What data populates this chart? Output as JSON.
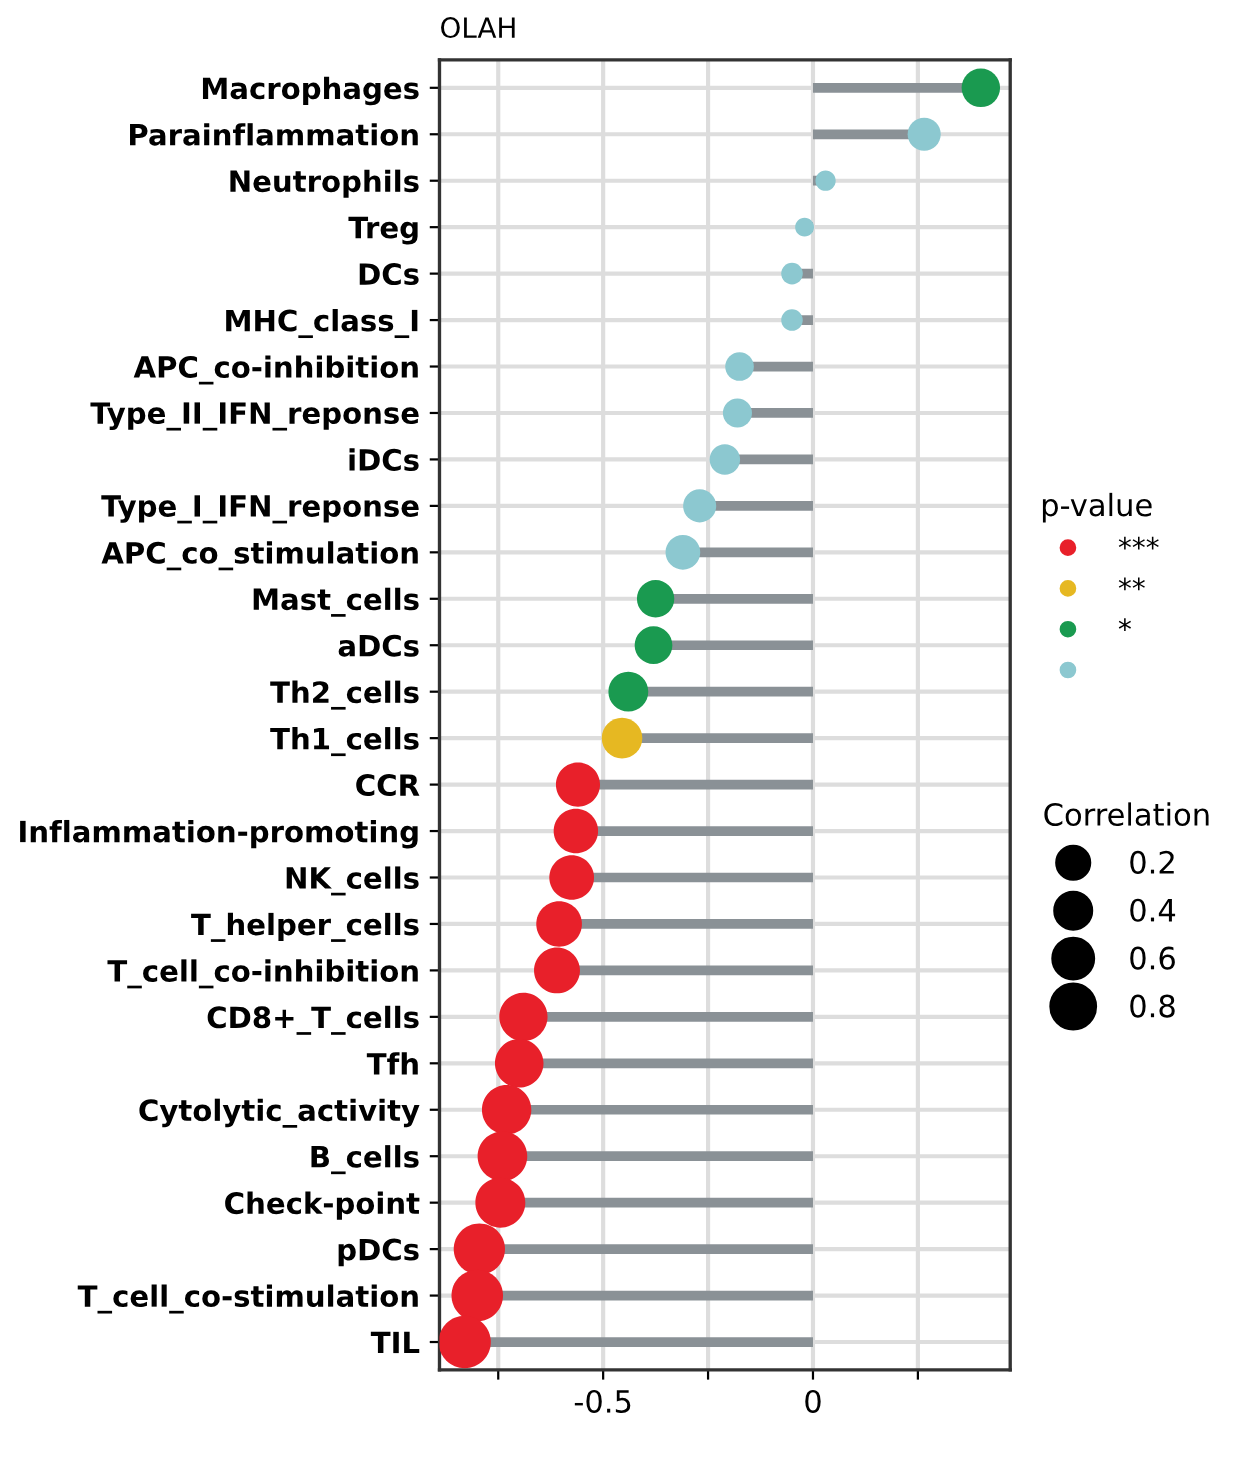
{
  "chart_data": {
    "type": "lollipop",
    "orientation": "horizontal",
    "title": "OLAH",
    "categories": [
      "Macrophages",
      "Parainflammation",
      "Neutrophils",
      "Treg",
      "DCs",
      "MHC_class_I",
      "APC_co-inhibition",
      "Type_II_IFN_reponse",
      "iDCs",
      "Type_I_IFN_reponse",
      "APC_co_stimulation",
      "Mast_cells",
      "aDCs",
      "Th2_cells",
      "Th1_cells",
      "CCR",
      "Inflammation-promoting",
      "NK_cells",
      "T_helper_cells",
      "T_cell_co-inhibition",
      "CD8+_T_cells",
      "Tfh",
      "Cytolytic_activity",
      "B_cells",
      "Check-point",
      "pDCs",
      "T_cell_co-stimulation",
      "TIL"
    ],
    "series": [
      {
        "name": "***",
        "color": "#e8202a",
        "values": [
          null,
          null,
          null,
          null,
          null,
          null,
          null,
          null,
          null,
          null,
          null,
          null,
          null,
          null,
          null,
          -0.56,
          -0.565,
          -0.575,
          -0.605,
          -0.61,
          -0.69,
          -0.7,
          -0.73,
          -0.74,
          -0.745,
          -0.795,
          -0.8,
          -0.83
        ],
        "sizes": [
          null,
          null,
          null,
          null,
          null,
          null,
          null,
          null,
          null,
          null,
          null,
          null,
          null,
          null,
          null,
          0.71,
          0.72,
          0.73,
          0.76,
          0.77,
          0.85,
          0.86,
          0.89,
          0.9,
          0.91,
          0.96,
          0.97,
          1
        ]
      },
      {
        "name": "**",
        "color": "#e6b822",
        "values": [
          null,
          null,
          null,
          null,
          null,
          null,
          null,
          null,
          null,
          null,
          null,
          null,
          null,
          null,
          -0.455,
          null,
          null,
          null,
          null,
          null,
          null,
          null,
          null,
          null,
          null,
          null,
          null,
          null
        ],
        "sizes": [
          null,
          null,
          null,
          null,
          null,
          null,
          null,
          null,
          null,
          null,
          null,
          null,
          null,
          null,
          0.6,
          null,
          null,
          null,
          null,
          null,
          null,
          null,
          null,
          null,
          null,
          null,
          null,
          null
        ]
      },
      {
        "name": "*",
        "color": "#1a9a50",
        "values": [
          0.4,
          null,
          null,
          null,
          null,
          null,
          null,
          null,
          null,
          null,
          null,
          -0.375,
          -0.38,
          -0.44,
          null,
          null,
          null,
          null,
          null,
          null,
          null,
          null,
          null,
          null,
          null,
          null,
          null,
          null
        ],
        "sizes": [
          0.54,
          null,
          null,
          null,
          null,
          null,
          null,
          null,
          null,
          null,
          null,
          0.51,
          0.52,
          0.58,
          null,
          null,
          null,
          null,
          null,
          null,
          null,
          null,
          null,
          null,
          null,
          null,
          null,
          null
        ]
      },
      {
        "color": "#8cc8d0",
        "values": [
          null,
          0.265,
          0.03,
          -0.02,
          -0.05,
          -0.05,
          -0.175,
          -0.18,
          -0.21,
          -0.27,
          -0.31,
          null,
          null,
          null,
          null,
          null,
          null,
          null,
          null,
          null,
          null,
          null,
          null,
          null,
          null,
          null,
          null,
          null
        ],
        "sizes": [
          null,
          0.4,
          0.15,
          0.13,
          0.17,
          0.17,
          0.3,
          0.31,
          0.34,
          0.4,
          0.44,
          null,
          null,
          null,
          null,
          null,
          null,
          null,
          null,
          null,
          null,
          null,
          null,
          null,
          null,
          null,
          null,
          null
        ]
      }
    ],
    "legend_title": "p-value",
    "annotations": [
      "Correlation",
      "0.2",
      "0.4",
      "0.6",
      "0.8"
    ],
    "xlim": [
      -0.89,
      0.47
    ],
    "xticks": [
      {
        "value": -0.75,
        "label": null
      },
      -0.5,
      {
        "value": -0.25,
        "label": null
      },
      0,
      {
        "value": 0.25,
        "label": null
      }
    ],
    "grid": true,
    "legend": "right",
    "marker": "circle"
  }
}
